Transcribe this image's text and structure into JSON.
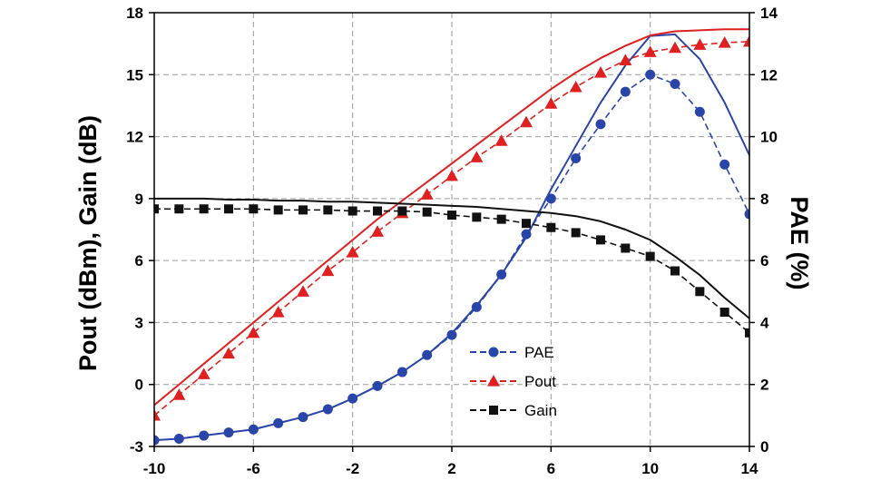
{
  "chart_data": {
    "type": "line",
    "title": "",
    "xlabel": "",
    "ylabel": "Pout (dBm), Gain (dB)",
    "y2label": "PAE (%)",
    "xlim": [
      -10,
      14
    ],
    "ylim": [
      -3,
      18
    ],
    "y2lim": [
      0,
      14
    ],
    "x_ticks": [
      "-10",
      "-6",
      "-2",
      "2",
      "6",
      "10",
      "14"
    ],
    "y_ticks": [
      "-3",
      "0",
      "3",
      "6",
      "9",
      "12",
      "15",
      "18"
    ],
    "y2_ticks": [
      "0",
      "2",
      "4",
      "6",
      "8",
      "10",
      "12",
      "14"
    ],
    "grid": true,
    "legend_position": "bottom-right",
    "colors": {
      "PAE": "#2a45a8",
      "Pout": "#e02020",
      "Gain": "#111111"
    },
    "x": [
      -10,
      -9,
      -8,
      -7,
      -6,
      -5,
      -4,
      -3,
      -2,
      -1,
      0,
      1,
      2,
      3,
      4,
      5,
      6,
      7,
      8,
      9,
      10,
      11,
      12,
      13,
      14
    ],
    "series": [
      {
        "name": "PAE",
        "axis": "right",
        "marker": "circle",
        "values": [
          0.2,
          0.25,
          0.35,
          0.45,
          0.55,
          0.75,
          0.95,
          1.2,
          1.55,
          1.95,
          2.4,
          2.95,
          3.6,
          4.5,
          5.55,
          6.85,
          8.0,
          9.3,
          10.4,
          11.45,
          12.0,
          11.7,
          10.8,
          9.1,
          7.5
        ],
        "model": [
          0.2,
          0.25,
          0.35,
          0.45,
          0.55,
          0.75,
          0.95,
          1.2,
          1.55,
          1.95,
          2.4,
          2.95,
          3.65,
          4.55,
          5.55,
          6.75,
          8.3,
          9.7,
          11.1,
          12.3,
          13.25,
          13.3,
          12.5,
          11.1,
          9.4
        ]
      },
      {
        "name": "Pout",
        "axis": "left",
        "marker": "triangle",
        "values": [
          -1.5,
          -0.5,
          0.5,
          1.5,
          2.5,
          3.5,
          4.5,
          5.5,
          6.4,
          7.4,
          8.3,
          9.2,
          10.1,
          11.0,
          11.8,
          12.7,
          13.6,
          14.4,
          15.1,
          15.7,
          16.1,
          16.3,
          16.45,
          16.55,
          16.6
        ],
        "model": [
          -1.0,
          0.0,
          1.0,
          2.0,
          3.0,
          4.0,
          5.0,
          6.0,
          7.0,
          8.0,
          8.9,
          9.8,
          10.7,
          11.6,
          12.5,
          13.4,
          14.3,
          15.1,
          15.8,
          16.4,
          16.9,
          17.1,
          17.15,
          17.2,
          17.2
        ]
      },
      {
        "name": "Gain",
        "axis": "left",
        "marker": "square",
        "values": [
          8.5,
          8.5,
          8.5,
          8.5,
          8.5,
          8.45,
          8.45,
          8.45,
          8.4,
          8.4,
          8.4,
          8.35,
          8.2,
          8.1,
          8.0,
          7.8,
          7.6,
          7.35,
          7.0,
          6.6,
          6.2,
          5.5,
          4.5,
          3.5,
          2.5
        ],
        "model": [
          9.0,
          9.0,
          9.0,
          8.95,
          8.95,
          8.9,
          8.9,
          8.85,
          8.85,
          8.8,
          8.75,
          8.7,
          8.65,
          8.6,
          8.5,
          8.4,
          8.3,
          8.15,
          7.9,
          7.5,
          7.0,
          6.2,
          5.3,
          4.2,
          3.2
        ]
      }
    ]
  }
}
